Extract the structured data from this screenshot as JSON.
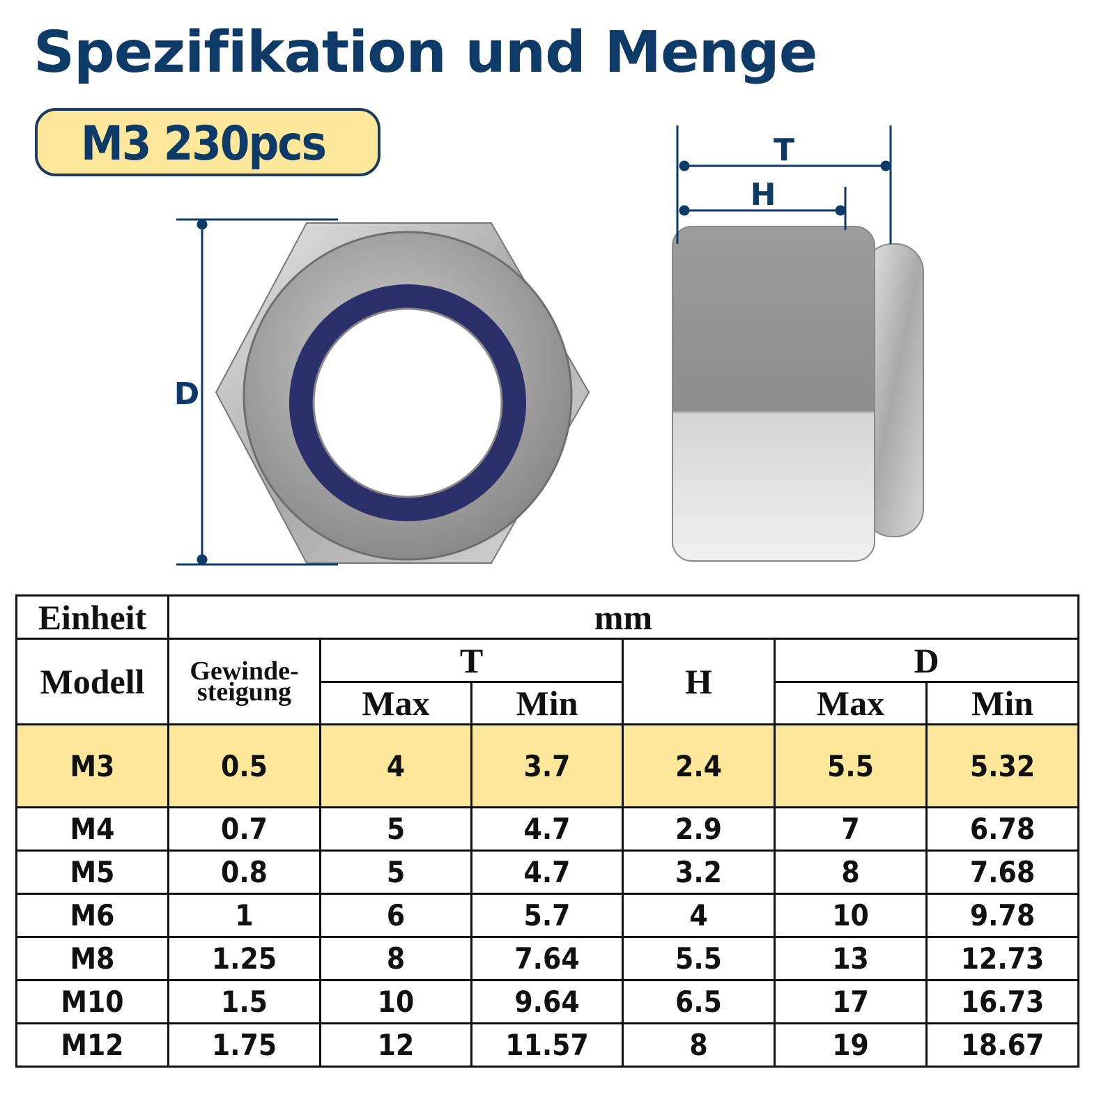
{
  "header": {
    "title": "Spezifikation und Menge",
    "badge": "M3 230pcs"
  },
  "dimensions": {
    "t": "T",
    "h": "H",
    "d": "D"
  },
  "table": {
    "head": {
      "unit_label": "Einheit",
      "unit": "mm",
      "model": "Modell",
      "pitch": [
        "Gewinde-",
        "steigung"
      ],
      "t": "T",
      "h": "H",
      "d": "D",
      "t_max": "Max",
      "t_min": "Min",
      "d_max": "Max",
      "d_min": "Min"
    },
    "rows": [
      [
        "M3",
        0.5,
        4,
        3.7,
        2.4,
        5.5,
        5.32
      ],
      [
        "M4",
        0.7,
        5,
        4.7,
        2.9,
        7,
        6.78
      ],
      [
        "M5",
        0.8,
        5,
        4.7,
        3.2,
        8,
        7.68
      ],
      [
        "M6",
        1,
        6,
        5.7,
        4,
        10,
        9.78
      ],
      [
        "M8",
        1.25,
        8,
        7.64,
        5.5,
        13,
        12.73
      ],
      [
        "M10",
        1.5,
        10,
        9.64,
        6.5,
        17,
        16.73
      ],
      [
        "M12",
        1.75,
        12,
        11.57,
        8,
        19,
        18.67
      ]
    ]
  }
}
